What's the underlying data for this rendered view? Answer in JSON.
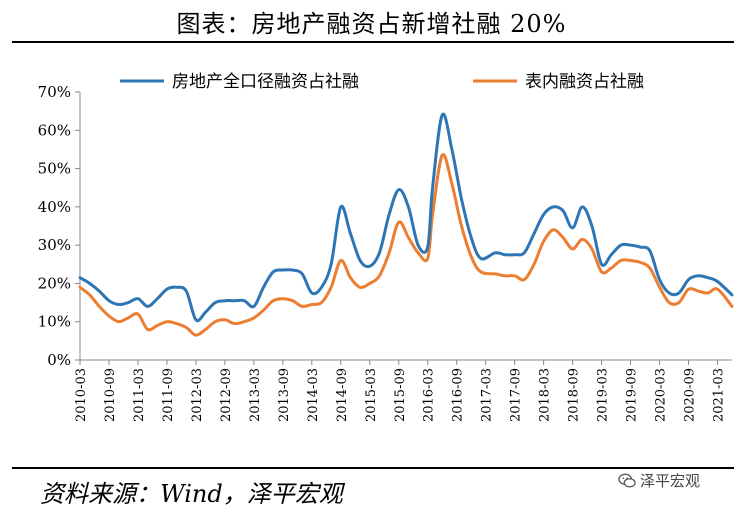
{
  "header": {
    "title": "图表：房地产融资占新增社融 20%"
  },
  "footer": {
    "source": "资料来源：Wind，泽平宏观",
    "watermark": "泽平宏观",
    "watermark_icon": "wechat-icon"
  },
  "chart_data": {
    "type": "line",
    "title": "图表：房地产融资占新增社融 20%",
    "xlabel": "",
    "ylabel": "",
    "ylim": [
      0,
      70
    ],
    "yticks": [
      0,
      10,
      20,
      30,
      40,
      50,
      60,
      70
    ],
    "ytick_labels": [
      "0%",
      "10%",
      "20%",
      "30%",
      "40%",
      "50%",
      "60%",
      "70%"
    ],
    "xtick_labels": [
      "2010-03",
      "2010-09",
      "2011-03",
      "2011-09",
      "2012-03",
      "2012-09",
      "2013-03",
      "2013-09",
      "2014-03",
      "2014-09",
      "2015-03",
      "2015-09",
      "2016-03",
      "2016-09",
      "2017-03",
      "2017-09",
      "2018-03",
      "2018-09",
      "2019-03",
      "2019-09",
      "2020-03",
      "2020-09",
      "2021-03"
    ],
    "x_start": "2010-03",
    "x_end": "2021-06",
    "legend_position": "top",
    "grid": false,
    "series": [
      {
        "name": "房地产全口径融资占社融",
        "color": "#2e75b6",
        "points": [
          [
            "2010-03",
            21.5
          ],
          [
            "2010-05",
            20
          ],
          [
            "2010-07",
            18
          ],
          [
            "2010-09",
            15.5
          ],
          [
            "2010-11",
            14.5
          ],
          [
            "2011-01",
            15
          ],
          [
            "2011-03",
            16
          ],
          [
            "2011-05",
            14
          ],
          [
            "2011-07",
            16
          ],
          [
            "2011-09",
            18.5
          ],
          [
            "2011-11",
            19
          ],
          [
            "2012-01",
            18
          ],
          [
            "2012-03",
            10.5
          ],
          [
            "2012-05",
            12.5
          ],
          [
            "2012-07",
            15
          ],
          [
            "2012-09",
            15.5
          ],
          [
            "2012-11",
            15.5
          ],
          [
            "2013-01",
            15.5
          ],
          [
            "2013-03",
            14
          ],
          [
            "2013-05",
            19
          ],
          [
            "2013-07",
            23
          ],
          [
            "2013-09",
            23.5
          ],
          [
            "2013-11",
            23.5
          ],
          [
            "2014-01",
            22.5
          ],
          [
            "2014-03",
            17.5
          ],
          [
            "2014-05",
            19
          ],
          [
            "2014-07",
            25
          ],
          [
            "2014-09",
            40
          ],
          [
            "2014-11",
            33
          ],
          [
            "2015-01",
            26
          ],
          [
            "2015-03",
            24.5
          ],
          [
            "2015-05",
            28
          ],
          [
            "2015-07",
            38
          ],
          [
            "2015-09",
            44.5
          ],
          [
            "2015-11",
            40
          ],
          [
            "2016-01",
            30
          ],
          [
            "2016-03",
            29.5
          ],
          [
            "2016-04",
            45
          ],
          [
            "2016-06",
            64
          ],
          [
            "2016-08",
            55
          ],
          [
            "2016-10",
            42
          ],
          [
            "2016-12",
            32
          ],
          [
            "2017-02",
            26.5
          ],
          [
            "2017-05",
            28
          ],
          [
            "2017-07",
            27.5
          ],
          [
            "2017-09",
            27.5
          ],
          [
            "2017-11",
            28
          ],
          [
            "2018-01",
            33
          ],
          [
            "2018-03",
            38
          ],
          [
            "2018-05",
            40
          ],
          [
            "2018-07",
            39
          ],
          [
            "2018-09",
            34.5
          ],
          [
            "2018-11",
            40
          ],
          [
            "2019-01",
            35
          ],
          [
            "2019-03",
            25
          ],
          [
            "2019-05",
            27.5
          ],
          [
            "2019-07",
            30
          ],
          [
            "2019-09",
            30
          ],
          [
            "2019-11",
            29.5
          ],
          [
            "2020-01",
            28.5
          ],
          [
            "2020-03",
            21
          ],
          [
            "2020-05",
            17.5
          ],
          [
            "2020-07",
            17.5
          ],
          [
            "2020-09",
            21
          ],
          [
            "2020-11",
            22
          ],
          [
            "2021-01",
            21.5
          ],
          [
            "2021-03",
            20.5
          ],
          [
            "2021-06",
            17
          ]
        ]
      },
      {
        "name": "表内融资占社融",
        "color": "#ed7d31",
        "points": [
          [
            "2010-03",
            19
          ],
          [
            "2010-05",
            17
          ],
          [
            "2010-07",
            14
          ],
          [
            "2010-09",
            11.5
          ],
          [
            "2010-11",
            10
          ],
          [
            "2011-01",
            11
          ],
          [
            "2011-03",
            12
          ],
          [
            "2011-05",
            8
          ],
          [
            "2011-07",
            9
          ],
          [
            "2011-09",
            10
          ],
          [
            "2011-11",
            9.5
          ],
          [
            "2012-01",
            8.5
          ],
          [
            "2012-03",
            6.5
          ],
          [
            "2012-05",
            8
          ],
          [
            "2012-07",
            10
          ],
          [
            "2012-09",
            10.5
          ],
          [
            "2012-11",
            9.5
          ],
          [
            "2013-01",
            10
          ],
          [
            "2013-03",
            11
          ],
          [
            "2013-05",
            13
          ],
          [
            "2013-07",
            15.5
          ],
          [
            "2013-09",
            16
          ],
          [
            "2013-11",
            15.5
          ],
          [
            "2014-01",
            14
          ],
          [
            "2014-03",
            14.5
          ],
          [
            "2014-05",
            15
          ],
          [
            "2014-07",
            19
          ],
          [
            "2014-09",
            26
          ],
          [
            "2014-11",
            21.5
          ],
          [
            "2015-01",
            19
          ],
          [
            "2015-03",
            20
          ],
          [
            "2015-05",
            22
          ],
          [
            "2015-07",
            28
          ],
          [
            "2015-09",
            36
          ],
          [
            "2015-11",
            32
          ],
          [
            "2016-01",
            28
          ],
          [
            "2016-03",
            26.5
          ],
          [
            "2016-04",
            38
          ],
          [
            "2016-06",
            53.5
          ],
          [
            "2016-08",
            46
          ],
          [
            "2016-10",
            35
          ],
          [
            "2016-12",
            27
          ],
          [
            "2017-02",
            23
          ],
          [
            "2017-05",
            22.5
          ],
          [
            "2017-07",
            22
          ],
          [
            "2017-09",
            22
          ],
          [
            "2017-11",
            21
          ],
          [
            "2018-01",
            25
          ],
          [
            "2018-03",
            31
          ],
          [
            "2018-05",
            34
          ],
          [
            "2018-07",
            32
          ],
          [
            "2018-09",
            29
          ],
          [
            "2018-11",
            31.5
          ],
          [
            "2019-01",
            29
          ],
          [
            "2019-03",
            23
          ],
          [
            "2019-05",
            24
          ],
          [
            "2019-07",
            26
          ],
          [
            "2019-09",
            26
          ],
          [
            "2019-11",
            25.5
          ],
          [
            "2020-01",
            24
          ],
          [
            "2020-03",
            19
          ],
          [
            "2020-05",
            15
          ],
          [
            "2020-07",
            15
          ],
          [
            "2020-09",
            18.5
          ],
          [
            "2020-11",
            18
          ],
          [
            "2021-01",
            17.5
          ],
          [
            "2021-03",
            18.5
          ],
          [
            "2021-06",
            14
          ]
        ]
      }
    ]
  }
}
